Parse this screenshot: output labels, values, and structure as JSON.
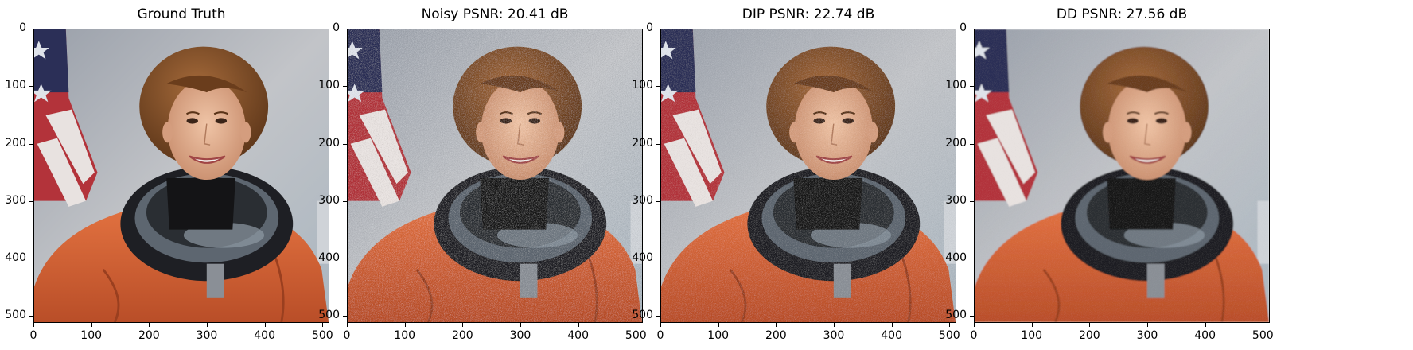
{
  "panels": [
    {
      "id": "gt",
      "title": "Ground Truth",
      "noise": 0,
      "blur": 0
    },
    {
      "id": "noisy",
      "title": "Noisy PSNR: 20.41 dB",
      "noise": 0.9,
      "blur": 0
    },
    {
      "id": "dip",
      "title": "DIP PSNR: 22.74 dB",
      "noise": 0.55,
      "blur": 0
    },
    {
      "id": "dd",
      "title": "DD PSNR: 27.56 dB",
      "noise": 0.15,
      "blur": 1.2
    }
  ],
  "axes": {
    "xticks": [
      "0",
      "100",
      "200",
      "300",
      "400",
      "500"
    ],
    "yticks": [
      "0",
      "100",
      "200",
      "300",
      "400",
      "500"
    ],
    "xtick_values": [
      0,
      100,
      200,
      300,
      400,
      500
    ],
    "ytick_values": [
      0,
      100,
      200,
      300,
      400,
      500
    ],
    "range": [
      0,
      512
    ]
  },
  "colors": {
    "background_sky": "#b8bcc4",
    "suit": "#d9663a",
    "hair": "#7a4a25",
    "skin": "#e2b091",
    "flag_red": "#b3333a",
    "flag_blue": "#2b2f57",
    "helmet_ring": "#1e1f24"
  }
}
